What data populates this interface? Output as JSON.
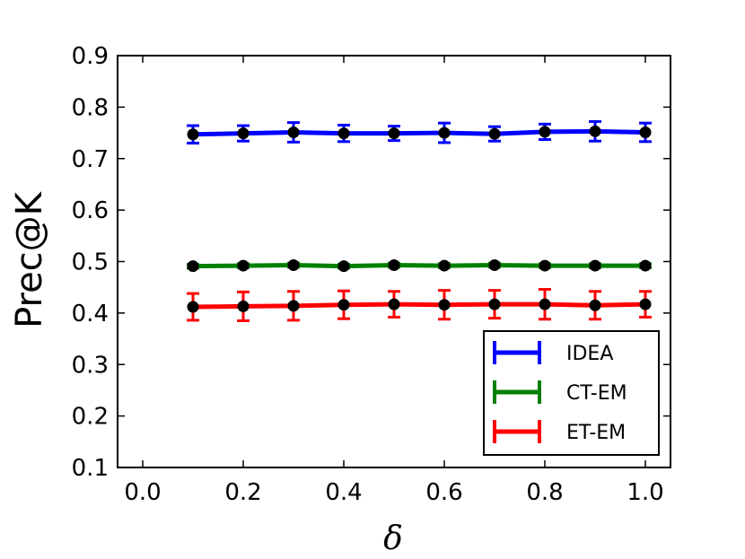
{
  "chart_data": {
    "type": "line",
    "title": "",
    "xlabel": "δ",
    "ylabel": "Prec@K",
    "xlim": [
      -0.05,
      1.05
    ],
    "ylim": [
      0.1,
      0.9
    ],
    "grid": false,
    "legend_position": "lower-right",
    "x_ticks": [
      "0.0",
      "0.2",
      "0.4",
      "0.6",
      "0.8",
      "1.0"
    ],
    "y_ticks": [
      "0.1",
      "0.2",
      "0.3",
      "0.4",
      "0.5",
      "0.6",
      "0.7",
      "0.8",
      "0.9"
    ],
    "x": [
      0.1,
      0.2,
      0.3,
      0.4,
      0.5,
      0.6,
      0.7,
      0.8,
      0.9,
      1.0
    ],
    "series": [
      {
        "name": "IDEA",
        "color": "#0000ff",
        "values": [
          0.747,
          0.749,
          0.751,
          0.749,
          0.749,
          0.75,
          0.748,
          0.752,
          0.753,
          0.751
        ],
        "errors": [
          0.017,
          0.015,
          0.019,
          0.016,
          0.014,
          0.019,
          0.014,
          0.015,
          0.019,
          0.018
        ]
      },
      {
        "name": "CT-EM",
        "color": "#007f00",
        "values": [
          0.491,
          0.492,
          0.493,
          0.491,
          0.493,
          0.492,
          0.493,
          0.492,
          0.492,
          0.492
        ],
        "errors": [
          0.004,
          0.004,
          0.004,
          0.004,
          0.004,
          0.004,
          0.004,
          0.004,
          0.004,
          0.004
        ]
      },
      {
        "name": "ET-EM",
        "color": "#ff0000",
        "values": [
          0.412,
          0.413,
          0.414,
          0.416,
          0.417,
          0.416,
          0.417,
          0.417,
          0.415,
          0.417
        ],
        "errors": [
          0.026,
          0.028,
          0.028,
          0.027,
          0.025,
          0.028,
          0.027,
          0.029,
          0.027,
          0.025
        ]
      }
    ]
  }
}
